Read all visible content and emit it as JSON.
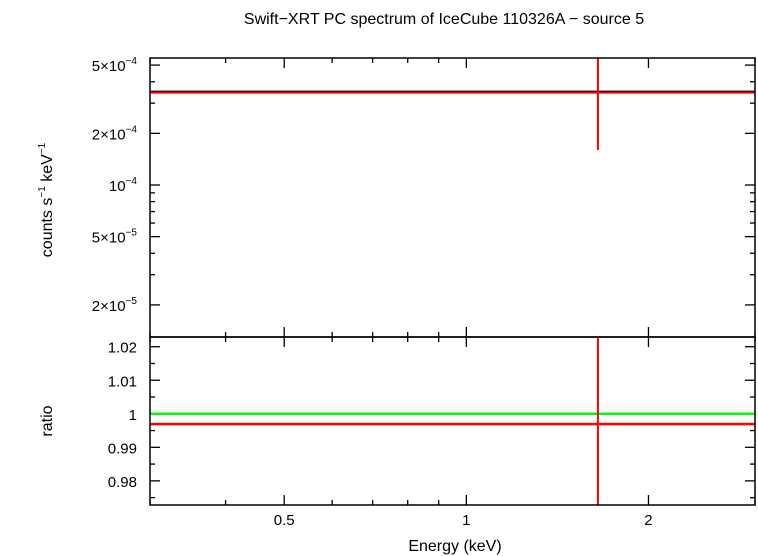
{
  "chart_data": [
    {
      "panel": "spectrum",
      "type": "scatter",
      "title": "Swift−XRT PC spectrum of IceCube 110326A − source 5",
      "ylabel": {
        "base": "counts s",
        "exp1": "−1",
        "mid": " keV",
        "exp2": "−1"
      },
      "xlabel": "Energy (keV)",
      "xscale": "log",
      "yscale": "log",
      "xlim": [
        0.3,
        3.0
      ],
      "ylim": [
        1.3e-05,
        0.00055
      ],
      "x_ticks": [
        {
          "value": 0.5,
          "label": "0.5"
        },
        {
          "value": 1,
          "label": "1"
        },
        {
          "value": 2,
          "label": "2"
        }
      ],
      "y_ticks": [
        {
          "value": 0.0005,
          "mant": "5×10",
          "exp": "−4"
        },
        {
          "value": 0.0002,
          "mant": "2×10",
          "exp": "−4"
        },
        {
          "value": 0.0001,
          "mant": "10",
          "exp": "−4"
        },
        {
          "value": 5e-05,
          "mant": "5×10",
          "exp": "−5"
        },
        {
          "value": 2e-05,
          "mant": "2×10",
          "exp": "−5"
        }
      ],
      "series": [
        {
          "role": "data",
          "color": "#ff0000",
          "points": [
            {
              "x": 1.65,
              "y": 0.00035,
              "xerr": [
                0.3,
                3.0
              ],
              "yerr": [
                0.00016,
                0.00055
              ]
            }
          ]
        },
        {
          "role": "model",
          "color": "#000000",
          "points": [
            {
              "x": 0.3,
              "y": 0.00035
            },
            {
              "x": 3.0,
              "y": 0.00035
            }
          ]
        }
      ]
    },
    {
      "panel": "ratio",
      "type": "scatter",
      "ylabel": "ratio",
      "xlabel": "Energy (keV)",
      "xscale": "log",
      "yscale": "linear",
      "xlim": [
        0.3,
        3.0
      ],
      "ylim": [
        0.9728,
        1.0229
      ],
      "y_ticks": [
        {
          "value": 1.02,
          "label": "1.02"
        },
        {
          "value": 1.01,
          "label": "1.01"
        },
        {
          "value": 1.0,
          "label": "1"
        },
        {
          "value": 0.99,
          "label": "0.99"
        },
        {
          "value": 0.98,
          "label": "0.98"
        }
      ],
      "series": [
        {
          "role": "reference",
          "color": "#00ff00",
          "y": 1.0
        },
        {
          "role": "data",
          "color": "#ff0000",
          "points": [
            {
              "x": 1.65,
              "y": 0.9969,
              "xerr": [
                0.3,
                3.0
              ],
              "yerr": [
                0.9728,
                1.0229
              ]
            }
          ]
        }
      ]
    }
  ]
}
